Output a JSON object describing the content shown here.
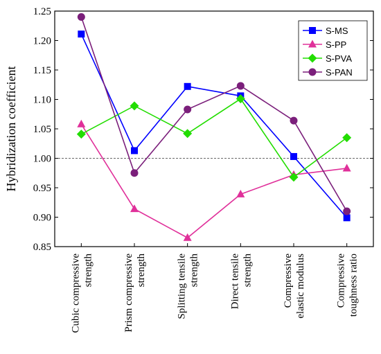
{
  "chart_data": {
    "type": "line",
    "title": "",
    "xlabel": "",
    "ylabel": "Hybridization coefficient",
    "ylim": [
      0.85,
      1.25
    ],
    "yticks": [
      "0.85",
      "0.90",
      "0.95",
      "1.00",
      "1.05",
      "1.10",
      "1.15",
      "1.20",
      "1.25"
    ],
    "reference_line": {
      "y": 1.0,
      "style": "dashed"
    },
    "grid": false,
    "legend_position": "top-right",
    "categories": [
      [
        "Cubic compressive",
        "strength"
      ],
      [
        "Prism compressive",
        "strength"
      ],
      [
        "Splitting tensile",
        "strength"
      ],
      [
        "Direct tensile",
        "strength"
      ],
      [
        "Compressive",
        "elastic modulus"
      ],
      [
        "Compressive",
        "toughness ratio"
      ]
    ],
    "series": [
      {
        "name": "S-MS",
        "color": "#0000ff",
        "marker": "square",
        "values": [
          1.211,
          1.013,
          1.122,
          1.106,
          1.003,
          0.899
        ]
      },
      {
        "name": "S-PP",
        "color": "#e0309a",
        "marker": "triangle",
        "values": [
          1.058,
          0.914,
          0.865,
          0.939,
          0.972,
          0.983
        ]
      },
      {
        "name": "S-PVA",
        "color": "#22dd00",
        "marker": "diamond",
        "values": [
          1.041,
          1.089,
          1.042,
          1.101,
          0.968,
          1.035
        ]
      },
      {
        "name": "S-PAN",
        "color": "#7b1f7b",
        "marker": "circle",
        "values": [
          1.24,
          0.975,
          1.083,
          1.123,
          1.064,
          0.91
        ]
      }
    ]
  }
}
